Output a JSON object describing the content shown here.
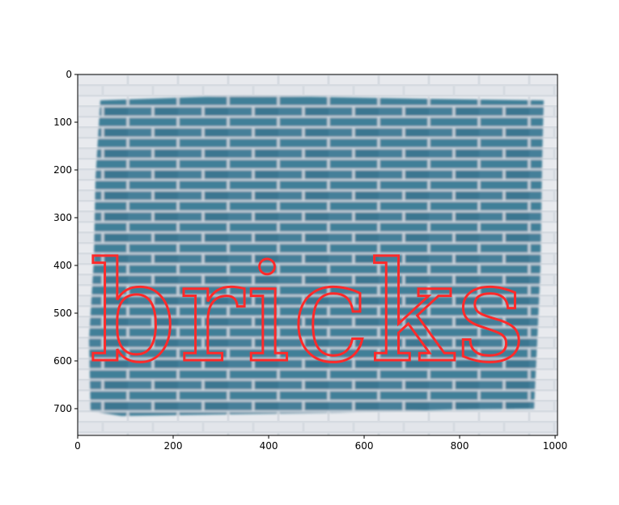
{
  "image": {
    "overlay_text": "bricks",
    "overlay_color": "#ff2a2a",
    "wall_color": "#3f7f98",
    "mortar_color": "#e6e8ec",
    "x_axis": {
      "ticks": [
        "0",
        "200",
        "400",
        "600",
        "800",
        "1000"
      ]
    },
    "y_axis": {
      "ticks": [
        "0",
        "100",
        "200",
        "300",
        "400",
        "500",
        "600",
        "700"
      ]
    }
  }
}
